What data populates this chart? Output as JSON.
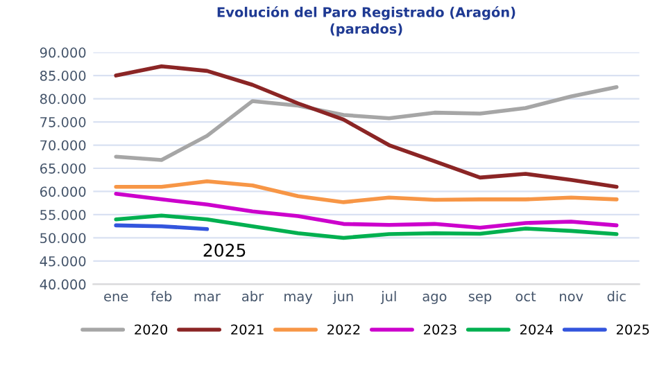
{
  "chart_data": {
    "type": "line",
    "title": "Evolución del Paro Registrado (Aragón)",
    "subtitle": "(parados)",
    "categories": [
      "ene",
      "feb",
      "mar",
      "abr",
      "may",
      "jun",
      "jul",
      "ago",
      "sep",
      "oct",
      "nov",
      "dic"
    ],
    "series": [
      {
        "name": "2020",
        "color": "#a6a6a6",
        "values": [
          67500,
          66800,
          72000,
          79500,
          78500,
          76500,
          75800,
          77000,
          76800,
          78000,
          80500,
          82500
        ]
      },
      {
        "name": "2021",
        "color": "#8b2525",
        "values": [
          85000,
          87000,
          86000,
          83000,
          79000,
          75500,
          70000,
          66500,
          63000,
          63800,
          62500,
          61000
        ]
      },
      {
        "name": "2022",
        "color": "#f79646",
        "values": [
          61000,
          61000,
          62200,
          61300,
          59000,
          57700,
          58700,
          58200,
          58300,
          58300,
          58700,
          58300
        ]
      },
      {
        "name": "2023",
        "color": "#cc00cc",
        "values": [
          59500,
          58300,
          57200,
          55700,
          54700,
          53000,
          52800,
          53000,
          52200,
          53200,
          53500,
          52700
        ]
      },
      {
        "name": "2024",
        "color": "#00b050",
        "values": [
          54000,
          54800,
          54000,
          52500,
          51000,
          50000,
          50800,
          51000,
          50900,
          52000,
          51500,
          50800
        ]
      },
      {
        "name": "2025",
        "color": "#3355dd",
        "values": [
          52700,
          52500,
          51900,
          null,
          null,
          null,
          null,
          null,
          null,
          null,
          null,
          null
        ]
      }
    ],
    "annotations": [
      "2025"
    ],
    "ylim": [
      40000,
      90000
    ],
    "yticks": [
      {
        "value": 40000,
        "label": "40.000"
      },
      {
        "value": 45000,
        "label": "45.000"
      },
      {
        "value": 50000,
        "label": "50.000"
      },
      {
        "value": 55000,
        "label": "55.000"
      },
      {
        "value": 60000,
        "label": "60.000"
      },
      {
        "value": 65000,
        "label": "65.000"
      },
      {
        "value": 70000,
        "label": "70.000"
      },
      {
        "value": 75000,
        "label": "75.000"
      },
      {
        "value": 80000,
        "label": "80.000"
      },
      {
        "value": 85000,
        "label": "85.000"
      },
      {
        "value": 90000,
        "label": "90.000"
      }
    ],
    "grid": "y",
    "legend": "bottom",
    "marker": "none",
    "line_style": "solid"
  }
}
